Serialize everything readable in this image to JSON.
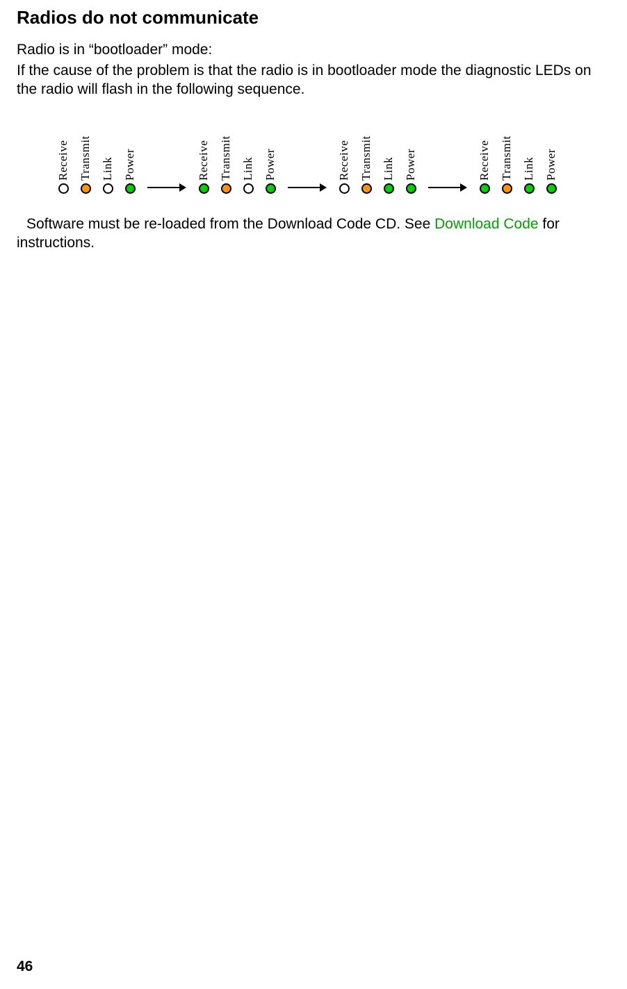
{
  "title": "Radios do not communicate",
  "para1": "Radio is in “bootloader” mode:",
  "para2": "If the cause of the problem is that the radio is in bootloader mode the diagnostic LEDs on the radio will flash in the following sequence.",
  "instr_prefix": "Software must be re-loaded from the Download Code CD.  See ",
  "instr_link": "Download Code",
  "instr_suffix": " for instructions.",
  "page_number": "46",
  "colors": {
    "off": "#ffffff",
    "orange": "#ff9500",
    "green": "#00d000",
    "border": "#000000",
    "link": "#00a000"
  },
  "led_labels": [
    "Receive",
    "Transmit",
    "Link",
    "Power"
  ],
  "sequence": [
    {
      "leds": [
        "off",
        "orange",
        "off",
        "green"
      ]
    },
    {
      "leds": [
        "green",
        "orange",
        "off",
        "green"
      ]
    },
    {
      "leds": [
        "off",
        "orange",
        "green",
        "green"
      ]
    },
    {
      "leds": [
        "green",
        "orange",
        "green",
        "green"
      ]
    }
  ],
  "arrow": {
    "length": 56,
    "stroke": "#000000",
    "stroke_width": 2
  }
}
